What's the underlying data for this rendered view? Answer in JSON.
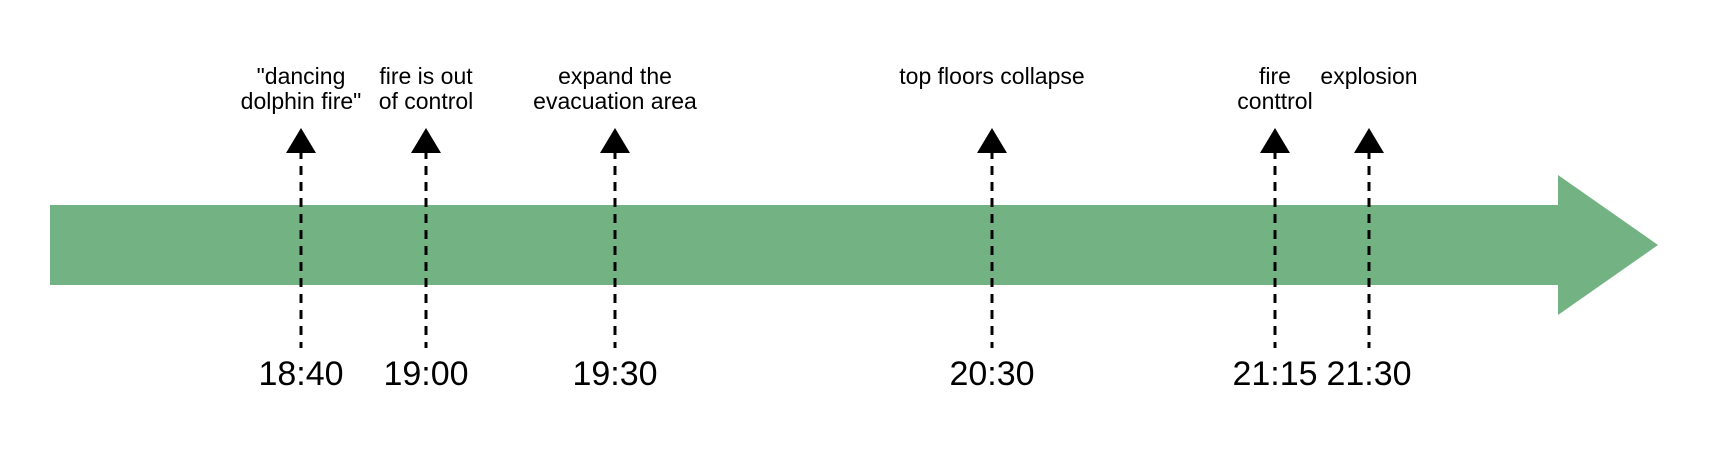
{
  "timeline": {
    "arrow_color": "#73b383",
    "marker_color": "#000000",
    "events": [
      {
        "time": "18:40",
        "label_lines": [
          "\"dancing",
          "dolphin fire\""
        ]
      },
      {
        "time": "19:00",
        "label_lines": [
          "fire is out",
          "of control"
        ]
      },
      {
        "time": "19:30",
        "label_lines": [
          "expand the",
          "evacuation area"
        ]
      },
      {
        "time": "20:30",
        "label_lines": [
          "top floors collapse"
        ]
      },
      {
        "time": "21:15",
        "label_lines": [
          "fire",
          "conttrol"
        ]
      },
      {
        "time": "21:30",
        "label_lines": [
          "explosion"
        ]
      }
    ]
  }
}
